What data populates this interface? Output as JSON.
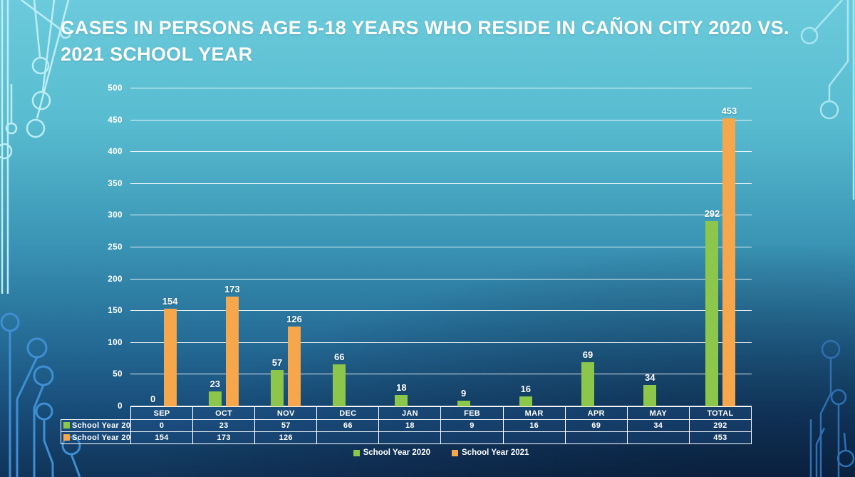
{
  "slide": {
    "title": "CASES IN PERSONS AGE 5-18 YEARS WHO RESIDE IN CAÑON CITY 2020 VS. 2021 SCHOOL YEAR"
  },
  "chart_data": {
    "type": "bar",
    "title": "CASES IN PERSONS AGE 5-18 YEARS WHO RESIDE IN CAÑON CITY 2020 VS. 2021 SCHOOL YEAR",
    "categories": [
      "SEP",
      "OCT",
      "NOV",
      "DEC",
      "JAN",
      "FEB",
      "MAR",
      "APR",
      "MAY",
      "TOTAL"
    ],
    "series": [
      {
        "name": "School Year 2020",
        "color": "#8CC64B",
        "values": [
          0,
          23,
          57,
          66,
          18,
          9,
          16,
          69,
          34,
          292
        ]
      },
      {
        "name": "School Year 2021",
        "color": "#F6A74B",
        "values": [
          154,
          173,
          126,
          null,
          null,
          null,
          null,
          null,
          null,
          453
        ]
      }
    ],
    "xlabel": "",
    "ylabel": "",
    "ylim": [
      0,
      500
    ],
    "ytick_step": 50,
    "yticks": [
      0,
      50,
      100,
      150,
      200,
      250,
      300,
      350,
      400,
      450,
      500
    ],
    "grid": true,
    "value_labels": true,
    "data_table": true,
    "legend_position": "bottom"
  },
  "theme": {
    "background_top": "#6BCBDC",
    "background_bottom": "#0D2546",
    "text_color": "#FFFFFF",
    "grid_color": "#FFFFFF",
    "table_fill": "rgba(36,88,148,0.30)",
    "circuit_light": "#BDEDF4",
    "circuit_dark": "#3F8FD2"
  }
}
